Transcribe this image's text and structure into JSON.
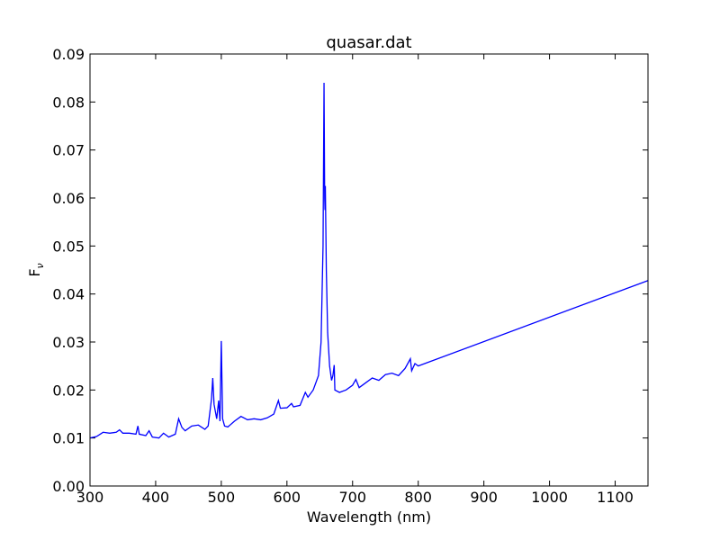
{
  "chart_data": {
    "type": "line",
    "title": "quasar.dat",
    "xlabel": "Wavelength (nm)",
    "ylabel": {
      "main": "F",
      "sub": "ν"
    },
    "x": [
      300,
      310,
      320,
      330,
      340,
      345,
      350,
      360,
      370,
      373,
      375,
      385,
      390,
      395,
      405,
      412,
      420,
      430,
      435,
      440,
      445,
      455,
      465,
      475,
      480,
      485,
      487,
      489,
      493,
      496,
      498,
      500,
      502,
      505,
      510,
      520,
      530,
      540,
      550,
      560,
      570,
      580,
      587,
      590,
      600,
      607,
      610,
      620,
      628,
      632,
      640,
      648,
      652,
      655,
      656.5,
      657.5,
      658,
      658.5,
      660,
      662,
      665,
      668,
      670,
      672,
      673,
      680,
      690,
      700,
      705,
      710,
      720,
      730,
      740,
      750,
      760,
      770,
      780,
      788,
      790,
      795,
      800,
      1150
    ],
    "series": [
      {
        "name": "quasar",
        "color": "#0000ff",
        "values": [
          0.01,
          0.0103,
          0.0112,
          0.011,
          0.0112,
          0.0117,
          0.011,
          0.011,
          0.0108,
          0.0125,
          0.0108,
          0.0105,
          0.0115,
          0.0102,
          0.01,
          0.011,
          0.0102,
          0.0108,
          0.014,
          0.0122,
          0.0115,
          0.0125,
          0.0127,
          0.0118,
          0.0125,
          0.018,
          0.0225,
          0.017,
          0.014,
          0.0178,
          0.0135,
          0.0302,
          0.014,
          0.0125,
          0.0123,
          0.0135,
          0.0145,
          0.0138,
          0.014,
          0.0138,
          0.0142,
          0.015,
          0.0178,
          0.0162,
          0.0163,
          0.0172,
          0.0165,
          0.0168,
          0.0195,
          0.0185,
          0.02,
          0.023,
          0.03,
          0.05,
          0.084,
          0.06,
          0.0575,
          0.0625,
          0.045,
          0.032,
          0.025,
          0.022,
          0.023,
          0.0252,
          0.02,
          0.0195,
          0.02,
          0.021,
          0.0222,
          0.0205,
          0.0215,
          0.0225,
          0.022,
          0.0232,
          0.0235,
          0.023,
          0.0245,
          0.0265,
          0.024,
          0.0255,
          0.025,
          0.0428
        ]
      }
    ],
    "xlim": [
      300,
      1150
    ],
    "xticks": [
      300,
      400,
      500,
      600,
      700,
      800,
      900,
      1000,
      1100
    ],
    "ylim": [
      0,
      0.09
    ],
    "yticks": [
      {
        "value": 0,
        "label": "0.00"
      },
      0.01,
      0.02,
      0.03,
      0.04,
      0.05,
      0.06,
      0.07,
      0.08,
      0.09
    ]
  }
}
